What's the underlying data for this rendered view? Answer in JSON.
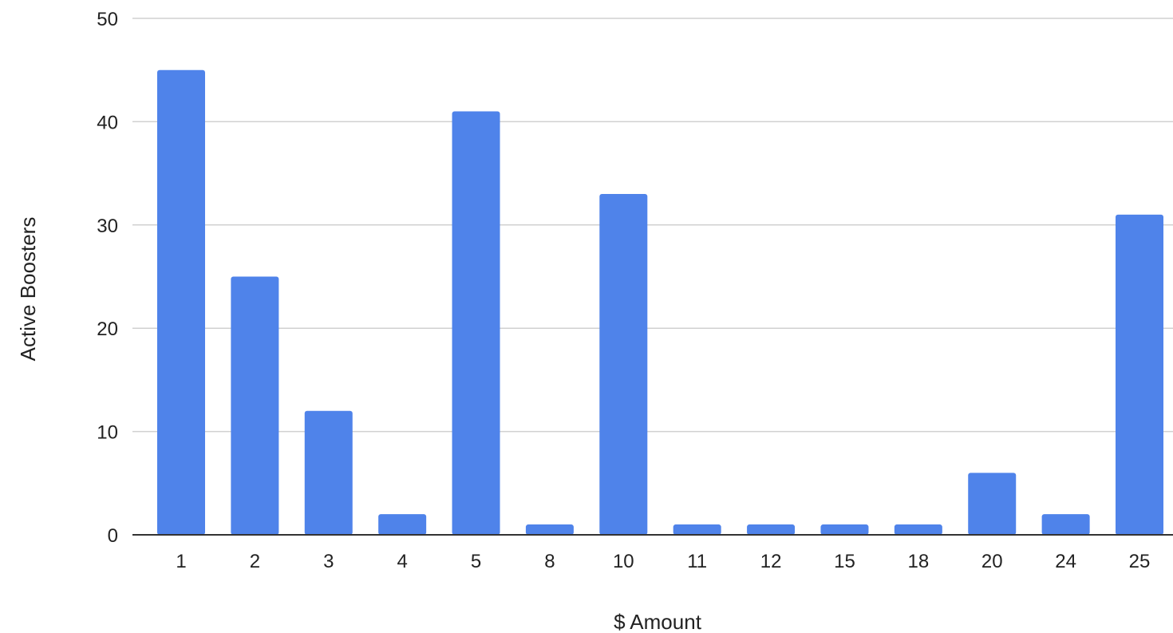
{
  "chart_data": {
    "type": "bar",
    "title": "",
    "xlabel": "$ Amount",
    "ylabel": "Active Boosters",
    "categories": [
      "1",
      "2",
      "3",
      "4",
      "5",
      "8",
      "10",
      "11",
      "12",
      "15",
      "18",
      "20",
      "24",
      "25"
    ],
    "values": [
      45,
      25,
      12,
      2,
      41,
      1,
      33,
      1,
      1,
      1,
      1,
      6,
      2,
      31
    ],
    "ylim": [
      0,
      50
    ],
    "yticks": [
      0,
      10,
      20,
      30,
      40,
      50
    ],
    "grid": true,
    "legend": "none",
    "bar_color": "#4F83EA"
  }
}
